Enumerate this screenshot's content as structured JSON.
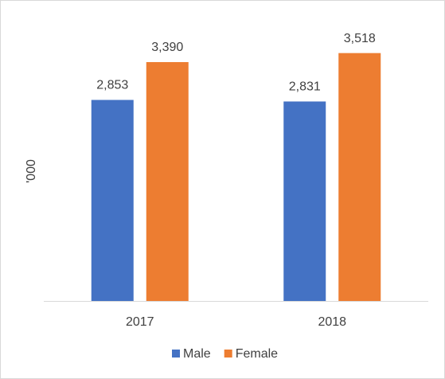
{
  "chart_data": {
    "type": "bar",
    "y_label": "'000",
    "categories": [
      "2017",
      "2018"
    ],
    "series": [
      {
        "name": "Male",
        "color": "#4472c4",
        "values": [
          2853,
          2831
        ],
        "value_labels": [
          "2,853",
          "2,831"
        ]
      },
      {
        "name": "Female",
        "color": "#ed7d31",
        "values": [
          3390,
          3518
        ],
        "value_labels": [
          "3,390",
          "3,518"
        ]
      }
    ],
    "ylim": [
      0,
      4000
    ],
    "grid": false,
    "legend": "bottom"
  }
}
